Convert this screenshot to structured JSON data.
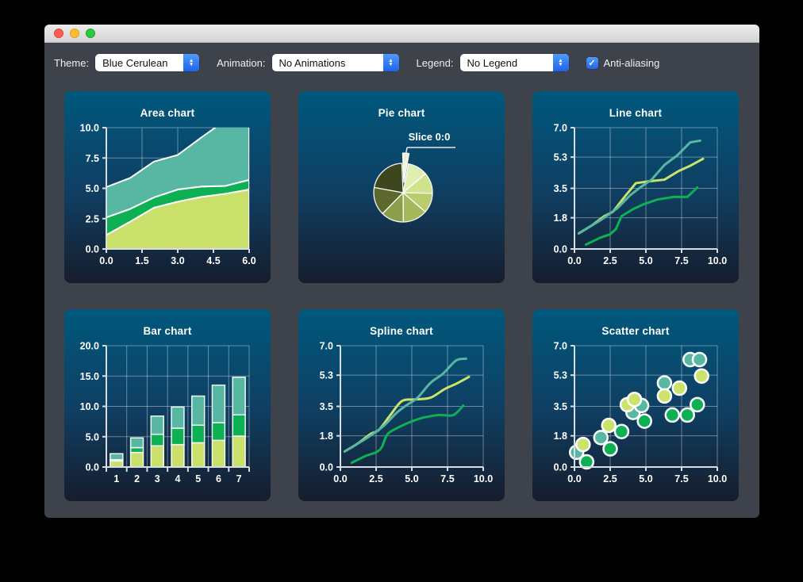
{
  "toolbar": {
    "theme_label": "Theme:",
    "theme_value": "Blue Cerulean",
    "animation_label": "Animation:",
    "animation_value": "No Animations",
    "legend_label": "Legend:",
    "legend_value": "No Legend",
    "antialiasing_label": "Anti-aliasing",
    "antialiasing_checked": true,
    "accent_color": "#2e7cf6"
  },
  "icons": {
    "checkmark": "✓",
    "arrow_up": "▲",
    "arrow_down": "▼"
  },
  "chart_data": [
    {
      "type": "area",
      "title": "Area chart",
      "xlim": [
        0,
        6
      ],
      "ylim": [
        0,
        10
      ],
      "xticks": [
        0,
        1.5,
        3,
        4.5,
        6
      ],
      "xtick_labels": [
        "0.0",
        "1.5",
        "3.0",
        "4.5",
        "6.0"
      ],
      "yticks": [
        0,
        2.5,
        5,
        7.5,
        10
      ],
      "ytick_labels": [
        "0.0",
        "2.5",
        "5.0",
        "7.5",
        "10.0"
      ],
      "x": [
        0,
        1,
        2,
        3,
        4,
        5,
        6
      ],
      "series": [
        {
          "color": "#c9e16b",
          "values": [
            1.15,
            2.25,
            3.4,
            3.9,
            4.3,
            4.55,
            4.9
          ]
        },
        {
          "color": "#0db053",
          "values": [
            2.6,
            3.3,
            4.25,
            4.9,
            5.15,
            5.2,
            5.7
          ]
        },
        {
          "color": "#57b7a2",
          "values": [
            5.1,
            5.85,
            7.2,
            7.75,
            9.2,
            10.6,
            11.5
          ]
        }
      ]
    },
    {
      "type": "pie",
      "title": "Pie chart",
      "label": "Slice 0:0",
      "slices": [
        {
          "name": "Slice 0:0",
          "value": 3.5,
          "color": "#eef6d0",
          "exploded": true
        },
        {
          "value": 11,
          "color": "#e1eeb2"
        },
        {
          "value": 11.5,
          "color": "#cfe38c"
        },
        {
          "value": 11,
          "color": "#b9cc6e"
        },
        {
          "value": 13.5,
          "color": "#a5b85c"
        },
        {
          "value": 12.5,
          "color": "#8d9e4b"
        },
        {
          "value": 15.5,
          "color": "#5d682e"
        },
        {
          "value": 21.5,
          "color": "#3e461e"
        }
      ]
    },
    {
      "type": "line",
      "title": "Line chart",
      "xlim": [
        0,
        10
      ],
      "ylim": [
        0,
        7
      ],
      "xticks": [
        0,
        2.5,
        5,
        7.5,
        10
      ],
      "xtick_labels": [
        "0.0",
        "2.5",
        "5.0",
        "7.5",
        "10.0"
      ],
      "yticks": [
        0,
        1.8,
        3.5,
        5.3,
        7
      ],
      "ytick_labels": [
        "0.0",
        "1.8",
        "3.5",
        "5.3",
        "7.0"
      ],
      "series": [
        {
          "color": "#cbe26b",
          "points": [
            [
              0.3,
              0.9
            ],
            [
              1.2,
              1.35
            ],
            [
              2.1,
              1.9
            ],
            [
              2.7,
              2.15
            ],
            [
              3.5,
              3.0
            ],
            [
              4.3,
              3.8
            ],
            [
              5.2,
              3.9
            ],
            [
              6.3,
              4.0
            ],
            [
              7.3,
              4.5
            ],
            [
              8.1,
              4.8
            ],
            [
              9.0,
              5.2
            ]
          ]
        },
        {
          "color": "#0db053",
          "points": [
            [
              0.8,
              0.25
            ],
            [
              1.8,
              0.65
            ],
            [
              2.5,
              0.85
            ],
            [
              2.9,
              1.15
            ],
            [
              3.3,
              1.9
            ],
            [
              4.1,
              2.3
            ],
            [
              4.9,
              2.6
            ],
            [
              5.8,
              2.85
            ],
            [
              6.9,
              3.0
            ],
            [
              7.9,
              3.0
            ],
            [
              8.6,
              3.55
            ]
          ]
        },
        {
          "color": "#57b7a2",
          "points": [
            [
              0.3,
              0.9
            ],
            [
              1.9,
              1.7
            ],
            [
              3.0,
              2.35
            ],
            [
              3.9,
              3.1
            ],
            [
              4.6,
              3.55
            ],
            [
              5.4,
              4.0
            ],
            [
              6.3,
              4.85
            ],
            [
              7.2,
              5.4
            ],
            [
              8.1,
              6.15
            ],
            [
              8.8,
              6.25
            ]
          ]
        }
      ]
    },
    {
      "type": "bar",
      "title": "Bar chart",
      "categories": [
        "1",
        "2",
        "3",
        "4",
        "5",
        "6",
        "7"
      ],
      "ylim": [
        0,
        20
      ],
      "yticks": [
        0,
        5,
        10,
        15,
        20
      ],
      "ytick_labels": [
        "0.0",
        "5.0",
        "10.0",
        "15.0",
        "20.0"
      ],
      "series": [
        {
          "color": "#c9e16b",
          "values": [
            1.0,
            2.4,
            3.5,
            3.7,
            4.0,
            4.4,
            5.1
          ]
        },
        {
          "color": "#0db053",
          "values": [
            0.2,
            0.8,
            1.9,
            2.7,
            2.9,
            2.9,
            3.5
          ]
        },
        {
          "color": "#57b7a2",
          "values": [
            1.0,
            1.6,
            3.0,
            3.5,
            4.8,
            6.2,
            6.2
          ]
        }
      ]
    },
    {
      "type": "spline",
      "title": "Spline chart",
      "xlim": [
        0,
        10
      ],
      "ylim": [
        0,
        7
      ],
      "xticks": [
        0,
        2.5,
        5,
        7.5,
        10
      ],
      "xtick_labels": [
        "0.0",
        "2.5",
        "5.0",
        "7.5",
        "10.0"
      ],
      "yticks": [
        0,
        1.8,
        3.5,
        5.3,
        7
      ],
      "ytick_labels": [
        "0.0",
        "1.8",
        "3.5",
        "5.3",
        "7.0"
      ],
      "series": [
        {
          "color": "#cbe26b",
          "points": [
            [
              0.3,
              0.9
            ],
            [
              1.2,
              1.35
            ],
            [
              2.1,
              1.9
            ],
            [
              2.7,
              2.15
            ],
            [
              3.5,
              3.0
            ],
            [
              4.3,
              3.8
            ],
            [
              5.2,
              3.9
            ],
            [
              6.3,
              4.0
            ],
            [
              7.3,
              4.5
            ],
            [
              8.1,
              4.8
            ],
            [
              9.0,
              5.2
            ]
          ]
        },
        {
          "color": "#0db053",
          "points": [
            [
              0.8,
              0.25
            ],
            [
              1.8,
              0.65
            ],
            [
              2.5,
              0.85
            ],
            [
              2.9,
              1.15
            ],
            [
              3.3,
              1.9
            ],
            [
              4.1,
              2.3
            ],
            [
              4.9,
              2.6
            ],
            [
              5.8,
              2.85
            ],
            [
              6.9,
              3.0
            ],
            [
              7.9,
              3.0
            ],
            [
              8.6,
              3.55
            ]
          ]
        },
        {
          "color": "#57b7a2",
          "points": [
            [
              0.3,
              0.9
            ],
            [
              1.9,
              1.7
            ],
            [
              3.0,
              2.35
            ],
            [
              3.9,
              3.1
            ],
            [
              4.6,
              3.55
            ],
            [
              5.4,
              4.0
            ],
            [
              6.3,
              4.85
            ],
            [
              7.2,
              5.4
            ],
            [
              8.1,
              6.15
            ],
            [
              8.8,
              6.25
            ]
          ]
        }
      ]
    },
    {
      "type": "scatter",
      "title": "Scatter chart",
      "xlim": [
        0,
        10
      ],
      "ylim": [
        0,
        7
      ],
      "xticks": [
        0,
        2.5,
        5,
        7.5,
        10
      ],
      "xtick_labels": [
        "0.0",
        "2.5",
        "5.0",
        "7.5",
        "10.0"
      ],
      "yticks": [
        0,
        1.8,
        3.5,
        5.3,
        7
      ],
      "ytick_labels": [
        "0.0",
        "1.8",
        "3.5",
        "5.3",
        "7.0"
      ],
      "series": [
        {
          "color": "#57b7a2",
          "points": [
            [
              0.15,
              0.85
            ],
            [
              1.85,
              1.7
            ],
            [
              4.1,
              3.15
            ],
            [
              4.7,
              3.55
            ],
            [
              6.3,
              4.85
            ],
            [
              8.1,
              6.2
            ],
            [
              8.75,
              6.2
            ]
          ]
        },
        {
          "color": "#cbe26b",
          "points": [
            [
              0.6,
              1.3
            ],
            [
              2.4,
              2.4
            ],
            [
              3.7,
              3.6
            ],
            [
              4.2,
              3.9
            ],
            [
              6.3,
              4.1
            ],
            [
              7.35,
              4.55
            ],
            [
              8.9,
              5.25
            ]
          ]
        },
        {
          "color": "#0db053",
          "points": [
            [
              0.85,
              0.3
            ],
            [
              2.5,
              1.05
            ],
            [
              3.3,
              2.05
            ],
            [
              4.9,
              2.65
            ],
            [
              6.85,
              3.0
            ],
            [
              7.9,
              3.0
            ],
            [
              8.6,
              3.6
            ]
          ]
        }
      ]
    }
  ]
}
